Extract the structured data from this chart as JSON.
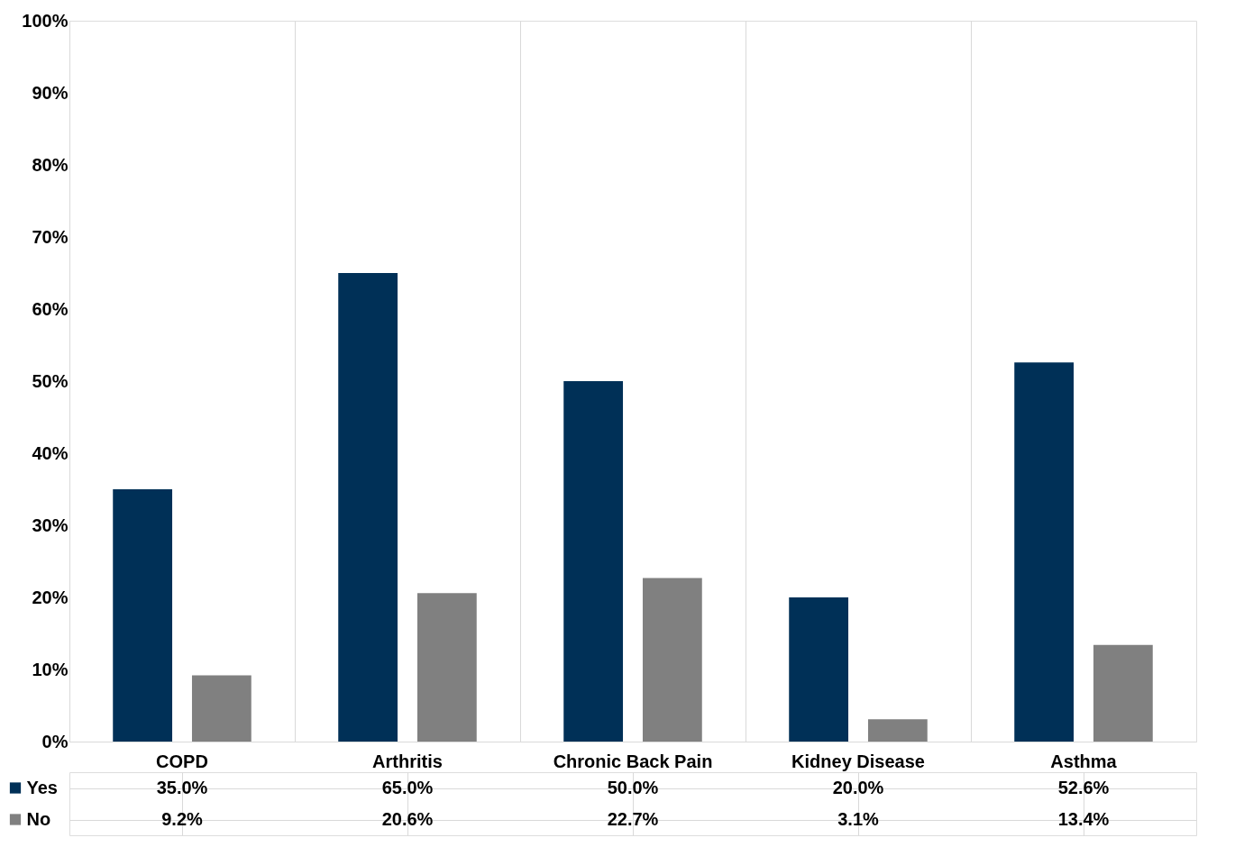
{
  "chart_data": {
    "type": "bar",
    "categories": [
      "COPD",
      "Arthritis",
      "Chronic Back Pain",
      "Kidney Disease",
      "Asthma"
    ],
    "series": [
      {
        "name": "Yes",
        "color": "#003057",
        "values": [
          35.0,
          65.0,
          50.0,
          20.0,
          52.6
        ],
        "value_labels": [
          "35.0%",
          "65.0%",
          "50.0%",
          "20.0%",
          "52.6%"
        ]
      },
      {
        "name": "No",
        "color": "#808080",
        "values": [
          9.2,
          20.6,
          22.7,
          3.1,
          13.4
        ],
        "value_labels": [
          "9.2%",
          "20.6%",
          "22.7%",
          "3.1%",
          "13.4%"
        ]
      }
    ],
    "ylim": [
      0,
      100
    ],
    "yticks": [
      {
        "value": 0,
        "label": "0%"
      },
      {
        "value": 10,
        "label": "10%"
      },
      {
        "value": 20,
        "label": "20%"
      },
      {
        "value": 30,
        "label": "30%"
      },
      {
        "value": 40,
        "label": "40%"
      },
      {
        "value": 50,
        "label": "50%"
      },
      {
        "value": 60,
        "label": "60%"
      },
      {
        "value": 70,
        "label": "70%"
      },
      {
        "value": 80,
        "label": "80%"
      },
      {
        "value": 90,
        "label": "90%"
      },
      {
        "value": 100,
        "label": "100%"
      }
    ],
    "grid": false,
    "legend": "bottom left"
  }
}
